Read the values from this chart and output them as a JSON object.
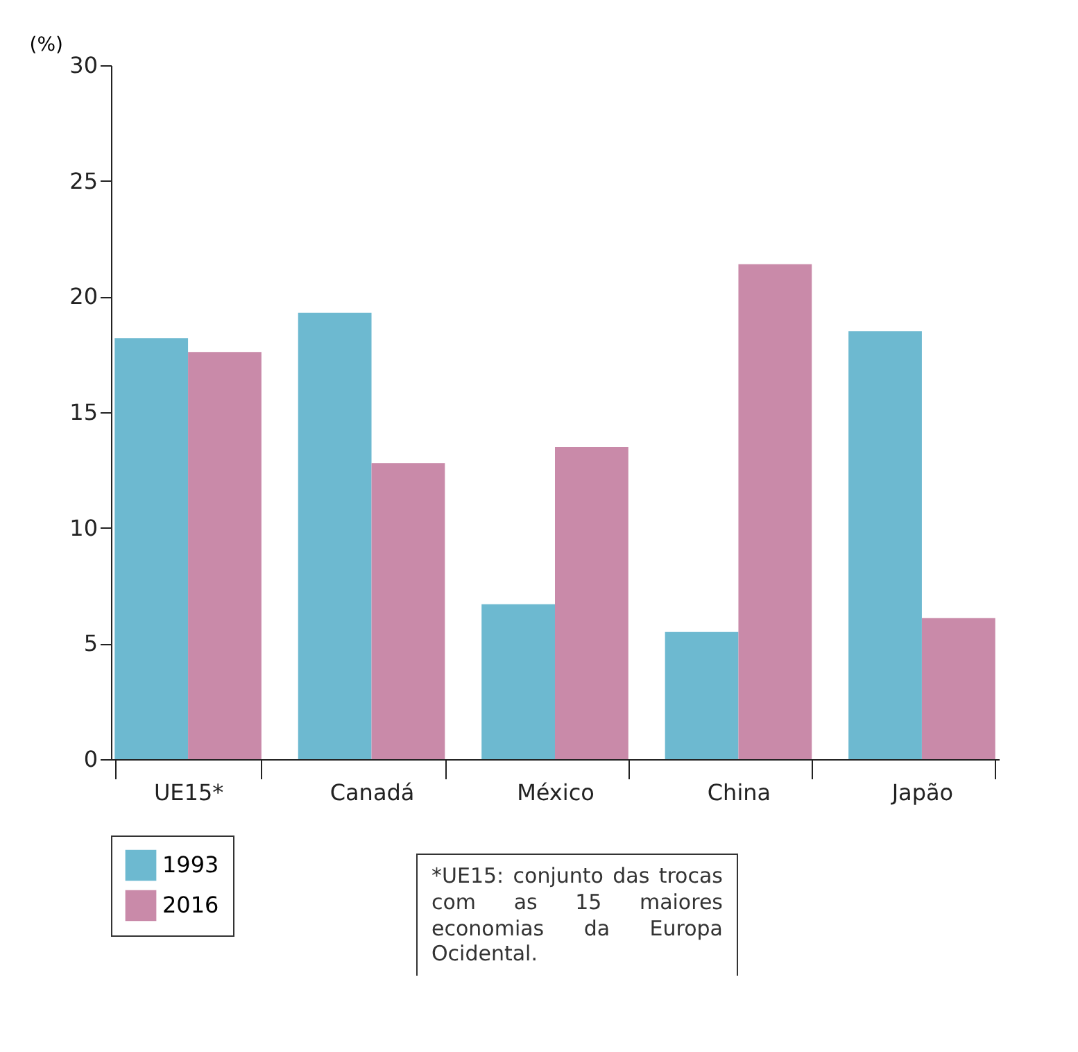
{
  "chart_data": {
    "type": "bar",
    "ylabel": "(%)",
    "categories": [
      "UE15*",
      "Canadá",
      "México",
      "China",
      "Japão"
    ],
    "series": [
      {
        "name": "1993",
        "color": "#6db9d0",
        "values": [
          18.2,
          19.3,
          6.7,
          5.5,
          18.5
        ]
      },
      {
        "name": "2016",
        "color": "#c98aa9",
        "values": [
          17.6,
          12.8,
          13.5,
          21.4,
          6.1
        ]
      }
    ],
    "ylim": [
      0,
      30
    ],
    "yticks": [
      0,
      5,
      10,
      15,
      20,
      25,
      30
    ],
    "grid": false,
    "legend": "bottom left",
    "annotations": [
      "*UE15: conjunto das trocas com as 15 maiores economias da Europa Ocidental."
    ]
  }
}
